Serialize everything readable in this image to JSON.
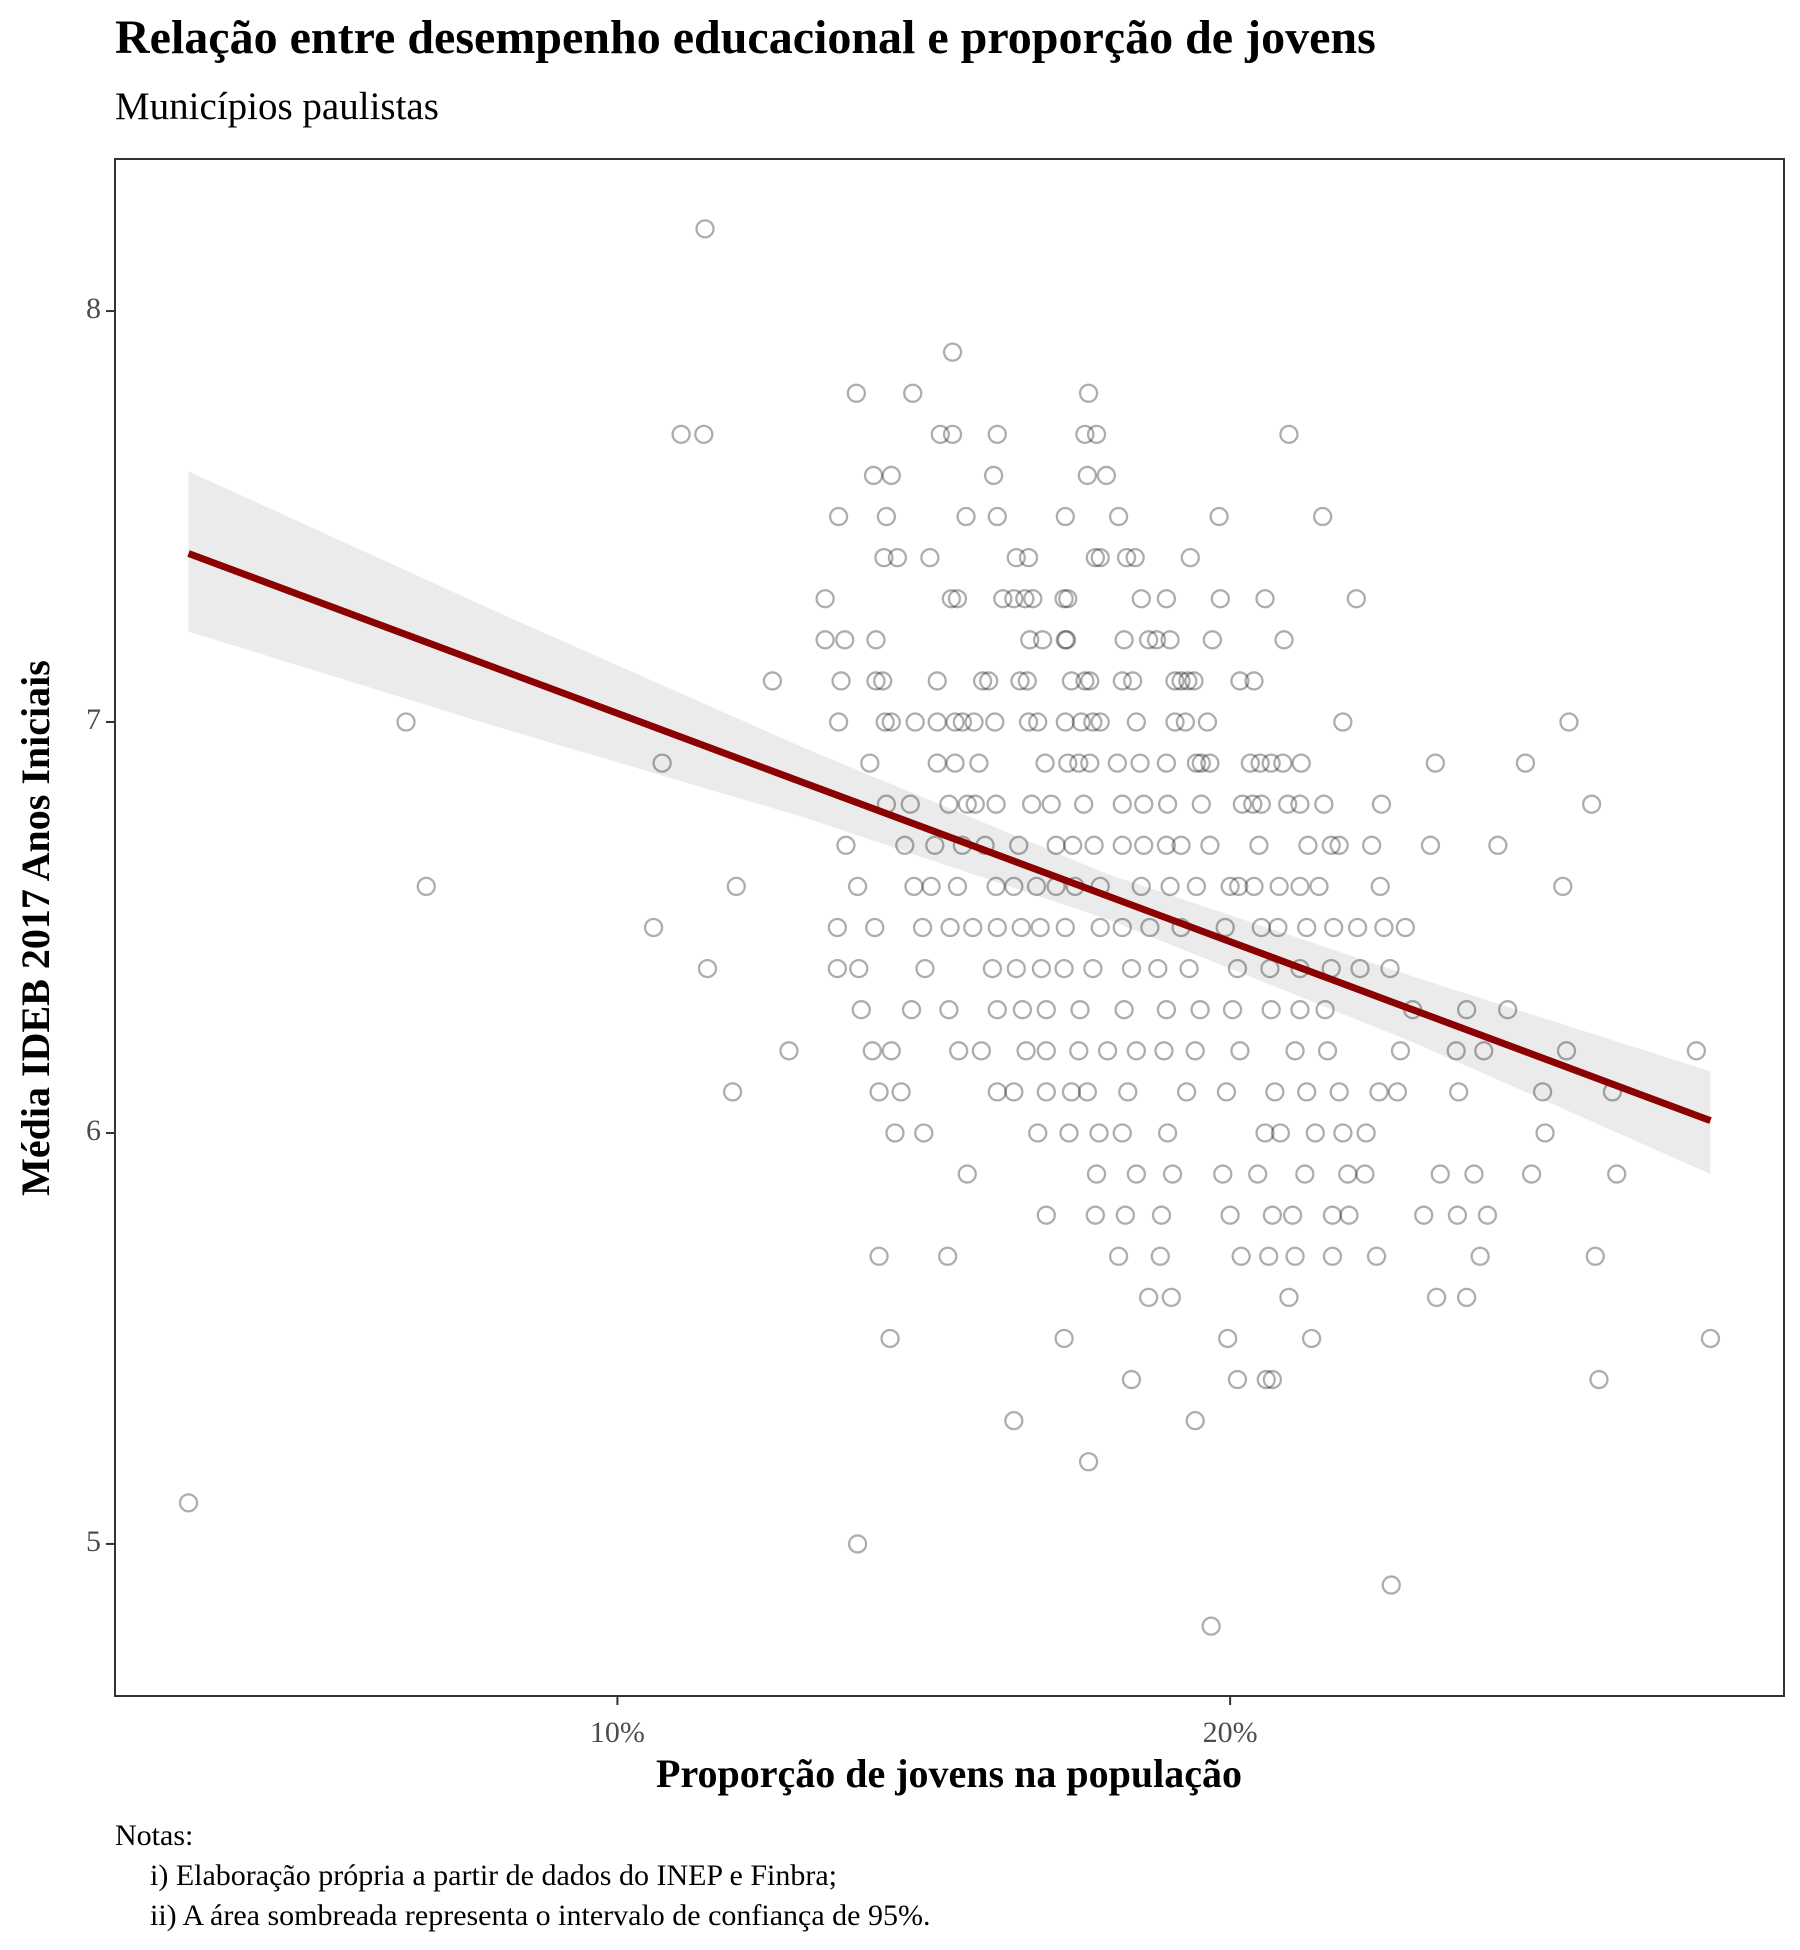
{
  "chart_data": {
    "type": "scatter",
    "title": "Relação entre desempenho educacional e proporção de jovens",
    "subtitle": "Municípios paulistas",
    "x_label": "Proporção de jovens na população",
    "y_label": "Média IDEB 2017 Anos Iniciais",
    "notes": [
      "Notas:",
      "i) Elaboração própria a partir de dados do INEP e Finbra;",
      "ii) A área sombreada representa o intervalo de confiança de 95%."
    ],
    "xlim": [
      1.8,
      29.04
    ],
    "ylim": [
      4.63,
      8.37
    ],
    "xticks": [
      {
        "value": 10,
        "label": "10%"
      },
      {
        "value": 20,
        "label": "20%"
      }
    ],
    "yticks": [
      5,
      6,
      7,
      8
    ],
    "grid": false,
    "color": "#000000",
    "x": [
      11.43,
      15.47,
      13.9,
      14.82,
      17.69,
      11.04,
      11.41,
      15.27,
      15.47,
      16.2,
      17.63,
      17.82,
      20.96,
      14.18,
      14.47,
      16.14,
      17.67,
      17.98,
      13.61,
      14.39,
      15.69,
      16.2,
      17.31,
      18.18,
      19.82,
      21.51,
      14.35,
      14.57,
      15.1,
      16.51,
      16.71,
      17.8,
      17.88,
      18.31,
      18.45,
      19.35,
      13.39,
      15.45,
      15.55,
      16.29,
      16.47,
      16.65,
      16.78,
      17.29,
      17.35,
      18.55,
      18.96,
      19.84,
      20.57,
      22.06,
      13.39,
      13.71,
      14.22,
      16.73,
      16.94,
      17.31,
      17.33,
      18.27,
      18.67,
      18.8,
      19.02,
      19.71,
      20.88,
      12.53,
      13.65,
      14.22,
      14.33,
      15.22,
      15.96,
      16.06,
      16.57,
      16.69,
      17.41,
      17.63,
      17.71,
      18.24,
      18.41,
      19.1,
      19.2,
      19.31,
      19.41,
      20.16,
      20.39,
      6.55,
      13.61,
      14.37,
      14.47,
      14.86,
      15.22,
      15.51,
      15.63,
      15.82,
      16.16,
      16.71,
      16.86,
      17.31,
      17.57,
      17.76,
      17.88,
      18.47,
      19.1,
      19.27,
      19.63,
      21.84,
      25.53,
      10.73,
      14.12,
      15.22,
      15.51,
      15.9,
      16.98,
      17.35,
      17.53,
      17.71,
      18.16,
      18.53,
      18.96,
      19.45,
      19.53,
      19.67,
      20.33,
      20.49,
      20.67,
      20.86,
      21.16,
      23.35,
      24.82,
      14.39,
      14.78,
      15.41,
      15.71,
      15.84,
      16.18,
      16.76,
      17.08,
      17.61,
      18.24,
      18.59,
      18.98,
      19.53,
      20.2,
      20.37,
      20.51,
      20.94,
      21.14,
      21.53,
      22.47,
      25.9,
      13.73,
      14.69,
      15.18,
      15.63,
      16.0,
      16.55,
      17.16,
      17.43,
      17.78,
      18.24,
      18.59,
      18.96,
      19.2,
      19.67,
      20.47,
      21.27,
      21.65,
      21.78,
      22.31,
      23.27,
      24.37,
      6.88,
      11.94,
      13.92,
      14.84,
      15.12,
      15.55,
      16.18,
      16.47,
      16.84,
      17.16,
      17.47,
      17.88,
      18.55,
      19.02,
      19.45,
      20.0,
      20.14,
      20.39,
      20.8,
      21.14,
      21.45,
      22.45,
      25.43,
      10.59,
      13.59,
      14.2,
      14.98,
      15.43,
      15.8,
      16.2,
      16.59,
      16.9,
      17.31,
      17.88,
      18.24,
      18.69,
      19.2,
      19.92,
      20.51,
      20.78,
      21.25,
      21.69,
      22.08,
      22.51,
      22.86,
      11.47,
      13.59,
      13.94,
      15.02,
      16.12,
      16.51,
      16.92,
      17.29,
      17.76,
      18.39,
      18.82,
      19.33,
      20.12,
      20.65,
      21.14,
      21.65,
      22.12,
      22.61,
      13.98,
      14.8,
      15.41,
      16.2,
      16.61,
      17.0,
      17.55,
      18.27,
      18.96,
      19.51,
      20.04,
      20.67,
      21.14,
      21.55,
      22.98,
      23.86,
      24.53,
      12.8,
      14.16,
      14.47,
      15.57,
      15.94,
      16.67,
      17.0,
      17.53,
      18.0,
      18.47,
      18.92,
      19.43,
      20.16,
      21.06,
      21.59,
      22.78,
      23.69,
      24.14,
      25.49,
      27.61,
      11.88,
      14.27,
      14.63,
      16.2,
      16.47,
      17.0,
      17.41,
      17.67,
      18.33,
      19.29,
      19.94,
      20.73,
      21.25,
      21.78,
      22.43,
      22.73,
      23.73,
      25.1,
      26.24,
      14.53,
      15.0,
      16.86,
      17.37,
      17.86,
      18.24,
      18.98,
      20.57,
      20.82,
      21.39,
      21.84,
      22.22,
      25.14,
      15.71,
      17.82,
      18.47,
      19.06,
      19.88,
      20.45,
      21.22,
      21.92,
      22.2,
      23.43,
      23.98,
      24.92,
      26.31,
      17.0,
      17.8,
      18.29,
      18.88,
      20.0,
      20.69,
      21.02,
      21.67,
      21.94,
      23.16,
      23.71,
      24.2,
      14.27,
      15.39,
      18.18,
      18.86,
      20.18,
      20.63,
      21.06,
      21.67,
      22.39,
      24.08,
      25.96,
      18.67,
      19.04,
      20.96,
      23.37,
      23.86,
      14.45,
      17.29,
      19.96,
      21.33,
      27.84,
      18.39,
      20.12,
      20.59,
      20.69,
      26.02,
      16.47,
      19.43,
      17.69,
      3.0,
      13.92,
      22.63,
      19.69
    ],
    "values": [
      8.2,
      7.9,
      7.8,
      7.8,
      7.8,
      7.7,
      7.7,
      7.7,
      7.7,
      7.7,
      7.7,
      7.7,
      7.7,
      7.6,
      7.6,
      7.6,
      7.6,
      7.6,
      7.5,
      7.5,
      7.5,
      7.5,
      7.5,
      7.5,
      7.5,
      7.5,
      7.4,
      7.4,
      7.4,
      7.4,
      7.4,
      7.4,
      7.4,
      7.4,
      7.4,
      7.4,
      7.3,
      7.3,
      7.3,
      7.3,
      7.3,
      7.3,
      7.3,
      7.3,
      7.3,
      7.3,
      7.3,
      7.3,
      7.3,
      7.3,
      7.2,
      7.2,
      7.2,
      7.2,
      7.2,
      7.2,
      7.2,
      7.2,
      7.2,
      7.2,
      7.2,
      7.2,
      7.2,
      7.1,
      7.1,
      7.1,
      7.1,
      7.1,
      7.1,
      7.1,
      7.1,
      7.1,
      7.1,
      7.1,
      7.1,
      7.1,
      7.1,
      7.1,
      7.1,
      7.1,
      7.1,
      7.1,
      7.1,
      7.0,
      7.0,
      7.0,
      7.0,
      7.0,
      7.0,
      7.0,
      7.0,
      7.0,
      7.0,
      7.0,
      7.0,
      7.0,
      7.0,
      7.0,
      7.0,
      7.0,
      7.0,
      7.0,
      7.0,
      7.0,
      7.0,
      6.9,
      6.9,
      6.9,
      6.9,
      6.9,
      6.9,
      6.9,
      6.9,
      6.9,
      6.9,
      6.9,
      6.9,
      6.9,
      6.9,
      6.9,
      6.9,
      6.9,
      6.9,
      6.9,
      6.9,
      6.9,
      6.9,
      6.8,
      6.8,
      6.8,
      6.8,
      6.8,
      6.8,
      6.8,
      6.8,
      6.8,
      6.8,
      6.8,
      6.8,
      6.8,
      6.8,
      6.8,
      6.8,
      6.8,
      6.8,
      6.8,
      6.8,
      6.8,
      6.7,
      6.7,
      6.7,
      6.7,
      6.7,
      6.7,
      6.7,
      6.7,
      6.7,
      6.7,
      6.7,
      6.7,
      6.7,
      6.7,
      6.7,
      6.7,
      6.7,
      6.7,
      6.7,
      6.7,
      6.7,
      6.6,
      6.6,
      6.6,
      6.6,
      6.6,
      6.6,
      6.6,
      6.6,
      6.6,
      6.6,
      6.6,
      6.6,
      6.6,
      6.6,
      6.6,
      6.6,
      6.6,
      6.6,
      6.6,
      6.6,
      6.6,
      6.6,
      6.6,
      6.5,
      6.5,
      6.5,
      6.5,
      6.5,
      6.5,
      6.5,
      6.5,
      6.5,
      6.5,
      6.5,
      6.5,
      6.5,
      6.5,
      6.5,
      6.5,
      6.5,
      6.5,
      6.5,
      6.5,
      6.5,
      6.5,
      6.4,
      6.4,
      6.4,
      6.4,
      6.4,
      6.4,
      6.4,
      6.4,
      6.4,
      6.4,
      6.4,
      6.4,
      6.4,
      6.4,
      6.4,
      6.4,
      6.4,
      6.4,
      6.3,
      6.3,
      6.3,
      6.3,
      6.3,
      6.3,
      6.3,
      6.3,
      6.3,
      6.3,
      6.3,
      6.3,
      6.3,
      6.3,
      6.3,
      6.3,
      6.3,
      6.2,
      6.2,
      6.2,
      6.2,
      6.2,
      6.2,
      6.2,
      6.2,
      6.2,
      6.2,
      6.2,
      6.2,
      6.2,
      6.2,
      6.2,
      6.2,
      6.2,
      6.2,
      6.2,
      6.2,
      6.1,
      6.1,
      6.1,
      6.1,
      6.1,
      6.1,
      6.1,
      6.1,
      6.1,
      6.1,
      6.1,
      6.1,
      6.1,
      6.1,
      6.1,
      6.1,
      6.1,
      6.1,
      6.1,
      6.0,
      6.0,
      6.0,
      6.0,
      6.0,
      6.0,
      6.0,
      6.0,
      6.0,
      6.0,
      6.0,
      6.0,
      6.0,
      5.9,
      5.9,
      5.9,
      5.9,
      5.9,
      5.9,
      5.9,
      5.9,
      5.9,
      5.9,
      5.9,
      5.9,
      5.9,
      5.8,
      5.8,
      5.8,
      5.8,
      5.8,
      5.8,
      5.8,
      5.8,
      5.8,
      5.8,
      5.8,
      5.8,
      5.7,
      5.7,
      5.7,
      5.7,
      5.7,
      5.7,
      5.7,
      5.7,
      5.7,
      5.7,
      5.7,
      5.6,
      5.6,
      5.6,
      5.6,
      5.6,
      5.5,
      5.5,
      5.5,
      5.5,
      5.5,
      5.4,
      5.4,
      5.4,
      5.4,
      5.4,
      5.3,
      5.3,
      5.2,
      5.1,
      5.0,
      4.9,
      4.8
    ],
    "fit": {
      "color": "#8b0000",
      "x": [
        3.0,
        27.84
      ],
      "values": [
        7.41,
        6.03
      ]
    },
    "band": {
      "color": "#ebebeb",
      "x": [
        3.0,
        8,
        13,
        18,
        23,
        27.84
      ],
      "lower": [
        7.22,
        6.99,
        6.77,
        6.52,
        6.22,
        5.9
      ],
      "upper": [
        7.61,
        7.27,
        6.94,
        6.63,
        6.38,
        6.15
      ]
    }
  }
}
